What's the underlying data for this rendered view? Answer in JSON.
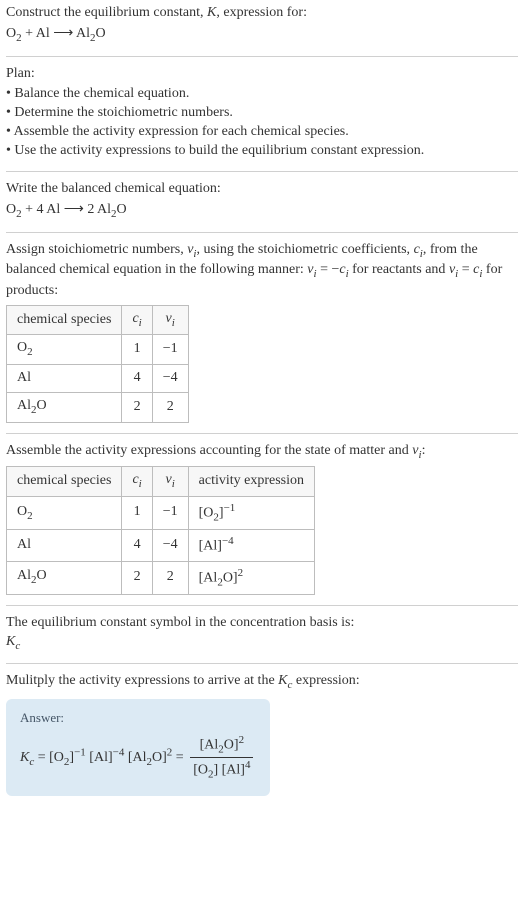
{
  "intro": {
    "line1": "Construct the equilibrium constant, ",
    "Ksym": "K",
    "line1b": ", expression for:",
    "equation_html": "O<sub>2</sub> + Al ⟶ Al<sub>2</sub>O"
  },
  "plan": {
    "heading": "Plan:",
    "items": [
      "Balance the chemical equation.",
      "Determine the stoichiometric numbers.",
      "Assemble the activity expression for each chemical species.",
      "Use the activity expressions to build the equilibrium constant expression."
    ]
  },
  "balanced": {
    "heading": "Write the balanced chemical equation:",
    "equation_html": "O<sub>2</sub> + 4 Al ⟶ 2 Al<sub>2</sub>O"
  },
  "assign": {
    "text_html": "Assign stoichiometric numbers, <span class=\"ital\">ν<sub>i</sub></span>, using the stoichiometric coefficients, <span class=\"ital\">c<sub>i</sub></span>, from the balanced chemical equation in the following manner: <span class=\"ital\">ν<sub>i</sub></span> = −<span class=\"ital\">c<sub>i</sub></span> for reactants and <span class=\"ital\">ν<sub>i</sub></span> = <span class=\"ital\">c<sub>i</sub></span> for products:",
    "headers": {
      "species": "chemical species",
      "ci_html": "<span class=\"ital\">c<sub>i</sub></span>",
      "vi_html": "<span class=\"ital\">ν<sub>i</sub></span>"
    },
    "rows": [
      {
        "species_html": "O<sub>2</sub>",
        "ci": "1",
        "vi": "−1"
      },
      {
        "species_html": "Al",
        "ci": "4",
        "vi": "−4"
      },
      {
        "species_html": "Al<sub>2</sub>O",
        "ci": "2",
        "vi": "2"
      }
    ]
  },
  "activity": {
    "heading_html": "Assemble the activity expressions accounting for the state of matter and <span class=\"ital\">ν<sub>i</sub></span>:",
    "headers": {
      "species": "chemical species",
      "ci_html": "<span class=\"ital\">c<sub>i</sub></span>",
      "vi_html": "<span class=\"ital\">ν<sub>i</sub></span>",
      "activity": "activity expression"
    },
    "rows": [
      {
        "species_html": "O<sub>2</sub>",
        "ci": "1",
        "vi": "−1",
        "activity_html": "[O<sub>2</sub>]<sup>−1</sup>"
      },
      {
        "species_html": "Al",
        "ci": "4",
        "vi": "−4",
        "activity_html": "[Al]<sup>−4</sup>"
      },
      {
        "species_html": "Al<sub>2</sub>O",
        "ci": "2",
        "vi": "2",
        "activity_html": "[Al<sub>2</sub>O]<sup>2</sup>"
      }
    ]
  },
  "kc_symbol": {
    "text": "The equilibrium constant symbol in the concentration basis is:",
    "symbol_html": "<span class=\"ital\">K<sub>c</sub></span>"
  },
  "multiply": {
    "text_html": "Mulitply the activity expressions to arrive at the <span class=\"ital\">K<sub>c</sub></span> expression:"
  },
  "answer": {
    "label": "Answer:",
    "lhs_html": "<span class=\"ital\">K<sub>c</sub></span> = [O<sub>2</sub>]<sup>−1</sup> [Al]<sup>−4</sup> [Al<sub>2</sub>O]<sup>2</sup> = ",
    "frac_num_html": "[Al<sub>2</sub>O]<sup>2</sup>",
    "frac_den_html": "[O<sub>2</sub>] [Al]<sup>4</sup>"
  },
  "colors": {
    "text": "#333333",
    "separator": "#d0d0d0",
    "table_border": "#bdbdbd",
    "table_header_bg": "#f7f7f7",
    "answer_bg": "#dceaf4",
    "answer_label": "#445566",
    "background": "#ffffff"
  }
}
